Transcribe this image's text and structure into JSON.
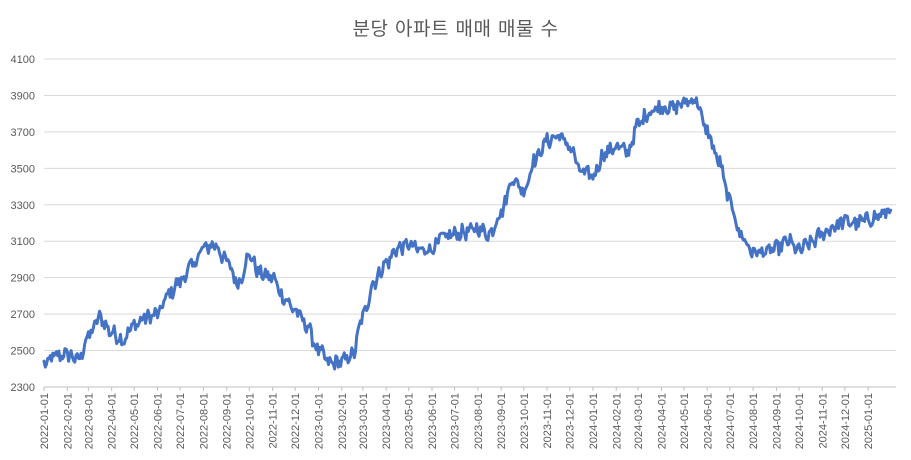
{
  "chart_data": {
    "type": "line",
    "title": "분당 아파트 매매 매물 수",
    "xlabel": "",
    "ylabel": "",
    "ylim": [
      2300,
      4100
    ],
    "y_ticks": [
      2300,
      2500,
      2700,
      2900,
      3100,
      3300,
      3500,
      3700,
      3900,
      4100
    ],
    "x_tick_labels": [
      "2022-01-01",
      "2022-02-01",
      "2022-03-01",
      "2022-04-01",
      "2022-05-01",
      "2022-06-01",
      "2022-07-01",
      "2022-08-01",
      "2022-09-01",
      "2022-10-01",
      "2022-11-01",
      "2022-12-01",
      "2023-01-01",
      "2023-02-01",
      "2023-03-01",
      "2023-04-01",
      "2023-05-01",
      "2023-06-01",
      "2023-07-01",
      "2023-08-01",
      "2023-09-01",
      "2023-10-01",
      "2023-11-01",
      "2023-12-01",
      "2024-01-01",
      "2024-02-01",
      "2024-03-01",
      "2024-04-01",
      "2024-05-01",
      "2024-06-01",
      "2024-07-01",
      "2024-08-01",
      "2024-09-01",
      "2024-10-01",
      "2024-11-01",
      "2024-12-01",
      "2025-01-01"
    ],
    "grid": true,
    "legend": "none",
    "line_color": "#4472c4",
    "series": [
      {
        "x": [
          "2022-01-01",
          "2022-01-16",
          "2022-02-01",
          "2022-02-16",
          "2022-03-01",
          "2022-03-16",
          "2022-04-01",
          "2022-04-16",
          "2022-05-01",
          "2022-05-16",
          "2022-06-01",
          "2022-06-16",
          "2022-07-01",
          "2022-07-16",
          "2022-08-01",
          "2022-08-16",
          "2022-09-01",
          "2022-09-16",
          "2022-10-01",
          "2022-10-16",
          "2022-11-01",
          "2022-11-16",
          "2022-12-01",
          "2022-12-16",
          "2023-01-01",
          "2023-01-16",
          "2023-02-01",
          "2023-02-16",
          "2023-03-01",
          "2023-03-16",
          "2023-04-01",
          "2023-04-16",
          "2023-05-01",
          "2023-05-16",
          "2023-06-01",
          "2023-06-16",
          "2023-07-01",
          "2023-07-16",
          "2023-08-01",
          "2023-08-16",
          "2023-09-01",
          "2023-09-16",
          "2023-10-01",
          "2023-10-16",
          "2023-11-01",
          "2023-11-16",
          "2023-12-01",
          "2023-12-16",
          "2024-01-01",
          "2024-01-16",
          "2024-02-01",
          "2024-02-16",
          "2024-03-01",
          "2024-03-16",
          "2024-04-01",
          "2024-04-16",
          "2024-05-01",
          "2024-05-16",
          "2024-06-01",
          "2024-06-16",
          "2024-07-01",
          "2024-07-16",
          "2024-08-01",
          "2024-08-16",
          "2024-09-01",
          "2024-09-16",
          "2024-10-01",
          "2024-10-16",
          "2024-11-01",
          "2024-11-16",
          "2024-12-01",
          "2024-12-16",
          "2025-01-01",
          "2025-01-16",
          "2025-01-31"
        ],
        "values": [
          2420,
          2470,
          2480,
          2450,
          2580,
          2680,
          2600,
          2560,
          2640,
          2680,
          2700,
          2810,
          2880,
          2960,
          3060,
          3080,
          2990,
          2870,
          3020,
          2920,
          2900,
          2790,
          2720,
          2640,
          2500,
          2430,
          2440,
          2480,
          2690,
          2880,
          2980,
          3060,
          3080,
          3050,
          3060,
          3120,
          3140,
          3150,
          3170,
          3140,
          3260,
          3440,
          3380,
          3550,
          3650,
          3680,
          3620,
          3480,
          3460,
          3580,
          3620,
          3590,
          3740,
          3810,
          3840,
          3830,
          3860,
          3880,
          3700,
          3540,
          3320,
          3130,
          3040,
          3040,
          3060,
          3100,
          3050,
          3090,
          3140,
          3180,
          3210,
          3200,
          3220,
          3240,
          3270
        ]
      }
    ]
  }
}
